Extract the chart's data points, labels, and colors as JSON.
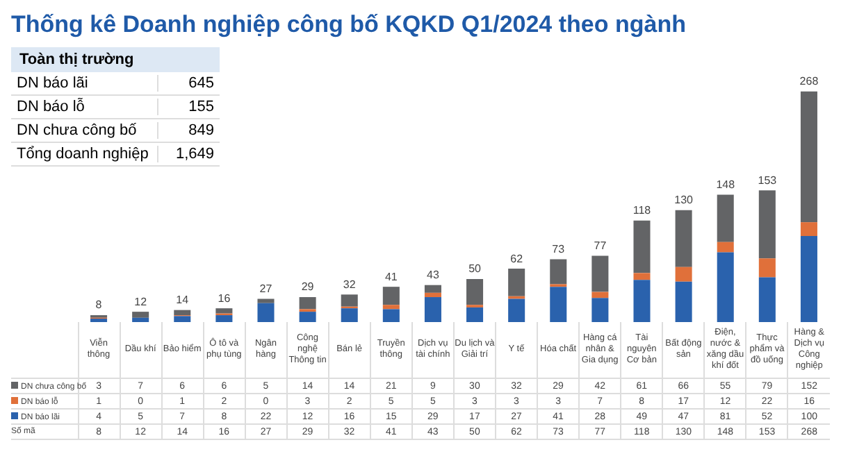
{
  "chart_data": [
    {
      "type": "other",
      "title": "Toàn thị trường",
      "categories": [
        "DN báo lãi",
        "DN báo lỗ",
        "DN chưa công bố",
        "Tổng doanh nghiệp"
      ],
      "value_labels": [
        "645",
        "155",
        "849",
        "1,649"
      ]
    },
    {
      "type": "bar",
      "title": "Thống kê Doanh nghiệp công bố KQKD Q1/2024 theo ngành",
      "stacked": true,
      "data_labels": true,
      "categories": [
        "Viễn thông",
        "Dầu khí",
        "Bảo hiểm",
        "Ô tô và phụ tùng",
        "Ngân hàng",
        "Công nghệ Thông tin",
        "Bán lẻ",
        "Truyền thông",
        "Dịch vụ tài chính",
        "Du lịch và Giải trí",
        "Y tế",
        "Hóa chất",
        "Hàng cá nhân & Gia dụng",
        "Tài nguyên Cơ bản",
        "Bất động sản",
        "Điện, nước & xăng dầu khí đốt",
        "Thực phẩm và đồ uống",
        "Hàng & Dịch vụ Công nghiệp"
      ],
      "series": [
        {
          "name": "DN báo lãi",
          "color": "#2a62ad",
          "values": [
            4,
            5,
            7,
            8,
            22,
            12,
            16,
            15,
            29,
            17,
            27,
            41,
            28,
            49,
            47,
            81,
            52,
            100
          ]
        },
        {
          "name": "DN báo lỗ",
          "color": "#e0703a",
          "values": [
            1,
            0,
            1,
            2,
            0,
            3,
            2,
            5,
            5,
            3,
            3,
            3,
            7,
            8,
            17,
            12,
            22,
            16
          ]
        },
        {
          "name": "DN chưa công bố",
          "color": "#636466",
          "values": [
            3,
            7,
            6,
            6,
            5,
            14,
            14,
            21,
            9,
            30,
            32,
            29,
            42,
            61,
            66,
            55,
            79,
            152
          ]
        }
      ],
      "totals": [
        "8",
        "12",
        "14",
        "16",
        "27",
        "29",
        "32",
        "41",
        "43",
        "50",
        "62",
        "73",
        "77",
        "118",
        "130",
        "148",
        "153",
        "268"
      ],
      "annotations": [
        "Số mã"
      ],
      "legend": "bottom left"
    }
  ]
}
